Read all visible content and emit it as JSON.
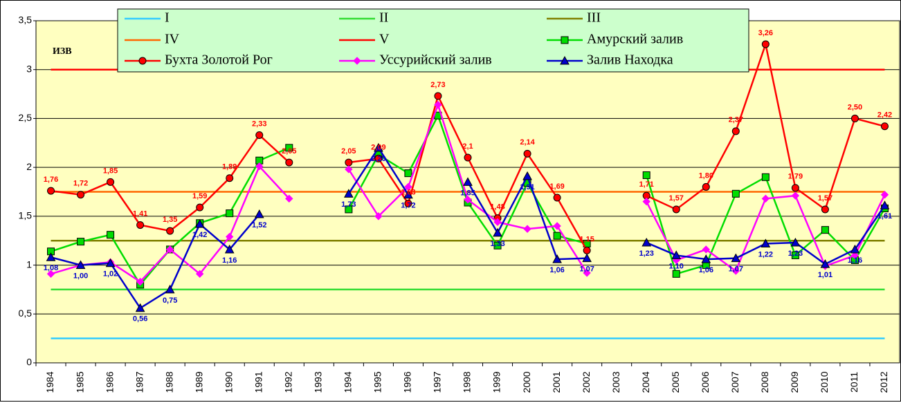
{
  "chart_data": {
    "type": "line",
    "annotation": "ИЗВ",
    "categories": [
      "1984",
      "1985",
      "1986",
      "1987",
      "1988",
      "1989",
      "1990",
      "1991",
      "1992",
      "1993",
      "1994",
      "1995",
      "1996",
      "1997",
      "1998",
      "1999",
      "2000",
      "2001",
      "2002",
      "2003",
      "2004",
      "2005",
      "2006",
      "2007",
      "2008",
      "2009",
      "2010",
      "2011",
      "2012"
    ],
    "ylim": [
      0,
      3.5
    ],
    "yticks": [
      0,
      {
        "value": 0.5,
        "label": "0,5"
      },
      1,
      {
        "value": 1.5,
        "label": "1,5"
      },
      2,
      {
        "value": 2.5,
        "label": "2,5"
      },
      3,
      {
        "value": 3.5,
        "label": "3,5"
      }
    ],
    "grid": true,
    "background": "#ffffc0",
    "series": [
      {
        "name": "I",
        "color": "#33ccff",
        "marker": "none",
        "values": [
          0.25,
          0.25,
          0.25,
          0.25,
          0.25,
          0.25,
          0.25,
          0.25,
          0.25,
          0.25,
          0.25,
          0.25,
          0.25,
          0.25,
          0.25,
          0.25,
          0.25,
          0.25,
          0.25,
          0.25,
          0.25,
          0.25,
          0.25,
          0.25,
          0.25,
          0.25,
          0.25,
          0.25,
          0.25
        ]
      },
      {
        "name": "II",
        "color": "#33dd33",
        "marker": "none",
        "values": [
          0.75,
          0.75,
          0.75,
          0.75,
          0.75,
          0.75,
          0.75,
          0.75,
          0.75,
          0.75,
          0.75,
          0.75,
          0.75,
          0.75,
          0.75,
          0.75,
          0.75,
          0.75,
          0.75,
          0.75,
          0.75,
          0.75,
          0.75,
          0.75,
          0.75,
          0.75,
          0.75,
          0.75,
          0.75
        ]
      },
      {
        "name": "III",
        "color": "#808000",
        "marker": "none",
        "values": [
          1.25,
          1.25,
          1.25,
          1.25,
          1.25,
          1.25,
          1.25,
          1.25,
          1.25,
          1.25,
          1.25,
          1.25,
          1.25,
          1.25,
          1.25,
          1.25,
          1.25,
          1.25,
          1.25,
          1.25,
          1.25,
          1.25,
          1.25,
          1.25,
          1.25,
          1.25,
          1.25,
          1.25,
          1.25
        ]
      },
      {
        "name": "IV",
        "color": "#ff6600",
        "marker": "none",
        "values": [
          1.75,
          1.75,
          1.75,
          1.75,
          1.75,
          1.75,
          1.75,
          1.75,
          1.75,
          1.75,
          1.75,
          1.75,
          1.75,
          1.75,
          1.75,
          1.75,
          1.75,
          1.75,
          1.75,
          1.75,
          1.75,
          1.75,
          1.75,
          1.75,
          1.75,
          1.75,
          1.75,
          1.75,
          1.75
        ]
      },
      {
        "name": "V",
        "color": "#ff0000",
        "marker": "none",
        "values": [
          3,
          3,
          3,
          3,
          3,
          3,
          3,
          3,
          3,
          3,
          3,
          3,
          3,
          3,
          3,
          3,
          3,
          3,
          3,
          3,
          3,
          3,
          3,
          3,
          3,
          3,
          3,
          3,
          3
        ]
      },
      {
        "name": "Амурский залив",
        "color": "#00dd00",
        "marker": "square",
        "values": [
          1.14,
          1.24,
          1.31,
          0.8,
          1.16,
          1.43,
          1.53,
          2.07,
          2.2,
          null,
          1.57,
          2.13,
          1.94,
          2.53,
          1.64,
          1.2,
          1.84,
          1.3,
          1.22,
          null,
          1.92,
          0.91,
          1.0,
          1.73,
          1.9,
          1.1,
          1.36,
          1.05,
          1.58
        ]
      },
      {
        "name": "Бухта Золотой Рог",
        "color": "#ff0000",
        "marker": "circle",
        "label_side": "above",
        "values": [
          1.76,
          1.72,
          1.85,
          1.41,
          1.35,
          1.59,
          1.89,
          2.33,
          2.05,
          null,
          2.05,
          2.09,
          1.63,
          2.73,
          2.1,
          1.48,
          2.14,
          1.69,
          1.15,
          null,
          1.71,
          1.57,
          1.8,
          2.37,
          3.26,
          1.79,
          1.57,
          2.5,
          2.42
        ],
        "value_labels": [
          "1,76",
          "1,72",
          "1,85",
          "1,41",
          "1,35",
          "1,59",
          "1,89",
          "2,33",
          "2,05",
          null,
          "2,05",
          "2,09",
          "1,63",
          "2,73",
          "2,1",
          "1,48",
          "2,14",
          "1,69",
          "1,15",
          null,
          "1,71",
          "1,57",
          "1,80",
          "2,37",
          "3,26",
          "1,79",
          "1,57",
          "2,50",
          "2,42"
        ]
      },
      {
        "name": "Уссурийский залив",
        "color": "#ff00ff",
        "marker": "diamond",
        "values": [
          0.91,
          1.0,
          1.03,
          0.83,
          1.16,
          0.91,
          1.29,
          2.01,
          1.68,
          null,
          1.98,
          1.5,
          1.8,
          2.64,
          1.67,
          1.44,
          1.37,
          1.4,
          0.92,
          null,
          1.65,
          1.05,
          1.16,
          0.94,
          1.68,
          1.71,
          0.99,
          1.1,
          1.72
        ]
      },
      {
        "name": "Залив Находка",
        "color": "#0000cc",
        "marker": "triangle",
        "label_side": "below",
        "values": [
          1.08,
          1.0,
          1.02,
          0.56,
          0.75,
          1.42,
          1.16,
          1.52,
          null,
          null,
          1.73,
          2.2,
          1.72,
          null,
          1.85,
          1.33,
          1.91,
          1.06,
          1.07,
          null,
          1.23,
          1.1,
          1.06,
          1.07,
          1.22,
          1.23,
          1.01,
          1.16,
          1.61
        ],
        "value_labels": [
          "1,08",
          "1,00",
          "1,02",
          "0,56",
          "0,75",
          "1,42",
          "1,16",
          "1,52",
          null,
          null,
          "1,73",
          "2,20",
          "1,72",
          null,
          "1,85",
          "1,33",
          "1,91",
          "1,06",
          "1,07",
          null,
          "1,23",
          "1,10",
          "1,06",
          "1,07",
          "1,22",
          "1,23",
          "1,01",
          "1,16",
          "1,61"
        ]
      }
    ]
  }
}
